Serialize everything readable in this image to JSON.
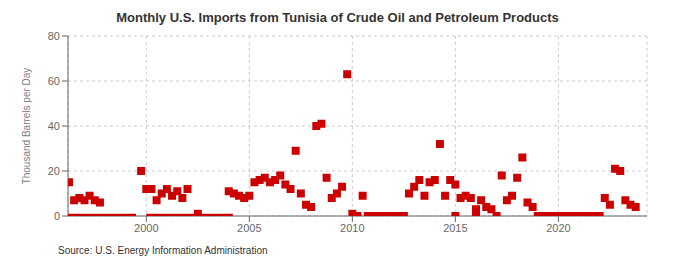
{
  "chart_data": {
    "type": "scatter",
    "title": "Monthly U.S. Imports from Tunisia of Crude Oil and Petroleum Products",
    "ylabel": "Thousand Barrels per Day",
    "annotations": [
      "Source: U.S. Energy Information Administration"
    ],
    "xlim": [
      1996.2,
      2024.3
    ],
    "xticks": [
      2000,
      2005,
      2010,
      2015,
      2020
    ],
    "ylim": [
      0,
      80
    ],
    "yticks": [
      0,
      20,
      40,
      60,
      80
    ],
    "grid": true,
    "color": "#CC0000",
    "series": [
      {
        "type": "scatter",
        "marker": "square",
        "x": [
          1996.25,
          1996.5,
          1996.75,
          1997.0,
          1997.25,
          1997.5,
          1997.75,
          1999.75,
          2000.0,
          2000.25,
          2000.5,
          2000.75,
          2001.0,
          2001.25,
          2001.5,
          2001.75,
          2002.0,
          2002.5,
          2004.0,
          2004.25,
          2004.5,
          2004.75,
          2005.0,
          2005.25,
          2005.5,
          2005.75,
          2006.0,
          2006.25,
          2006.5,
          2006.75,
          2007.0,
          2007.25,
          2007.5,
          2007.75,
          2008.0,
          2008.25,
          2008.5,
          2008.75,
          2009.0,
          2009.25,
          2009.5,
          2009.75,
          2010.0,
          2010.5,
          2012.75,
          2013.0,
          2013.25,
          2013.5,
          2013.75,
          2014.0,
          2014.25,
          2014.5,
          2014.75,
          2015.0,
          2015.25,
          2015.5,
          2015.75,
          2016.0,
          2016.25,
          2016.5,
          2016.75,
          2017.25,
          2017.5,
          2017.75,
          2018.0,
          2018.25,
          2018.5,
          2018.75,
          2022.25,
          2022.5,
          2022.75,
          2023.0,
          2023.25,
          2023.5,
          2023.75
        ],
        "values": [
          15,
          7,
          8,
          7,
          9,
          7,
          6,
          20,
          12,
          12,
          7,
          10,
          12,
          9,
          11,
          8,
          12,
          1,
          11,
          10,
          9,
          8,
          9,
          15,
          16,
          17,
          15,
          16,
          18,
          14,
          12,
          29,
          10,
          5,
          4,
          40,
          41,
          17,
          8,
          10,
          13,
          63,
          1,
          9,
          10,
          13,
          16,
          9,
          15,
          16,
          32,
          9,
          16,
          14,
          8,
          9,
          8,
          3,
          7,
          4,
          3,
          18,
          7,
          9,
          17,
          26,
          6,
          4,
          8,
          5,
          21,
          20,
          7,
          5,
          4
        ]
      },
      {
        "type": "line",
        "segments": [
          {
            "x": [
              1996.2,
              1999.5
            ],
            "values": [
              0,
              0
            ]
          },
          {
            "x": [
              2000.0,
              2004.2
            ],
            "values": [
              0,
              0
            ]
          }
        ]
      },
      {
        "type": "scatter",
        "marker": "square",
        "x": [
          2010.25,
          2010.75,
          2011.0,
          2011.25,
          2011.5,
          2011.75,
          2012.0,
          2012.25,
          2012.5,
          2015.0,
          2016.0,
          2017.0,
          2019.0,
          2019.25,
          2019.5,
          2019.75,
          2020.0,
          2020.25,
          2020.5,
          2020.75,
          2021.0,
          2021.25,
          2021.5,
          2021.75,
          2022.0
        ],
        "values": [
          0,
          0,
          0,
          0,
          0,
          0,
          0,
          0,
          0,
          0,
          0,
          0,
          0,
          0,
          0,
          0,
          0,
          0,
          0,
          0,
          0,
          0,
          0,
          0,
          0
        ]
      }
    ]
  }
}
